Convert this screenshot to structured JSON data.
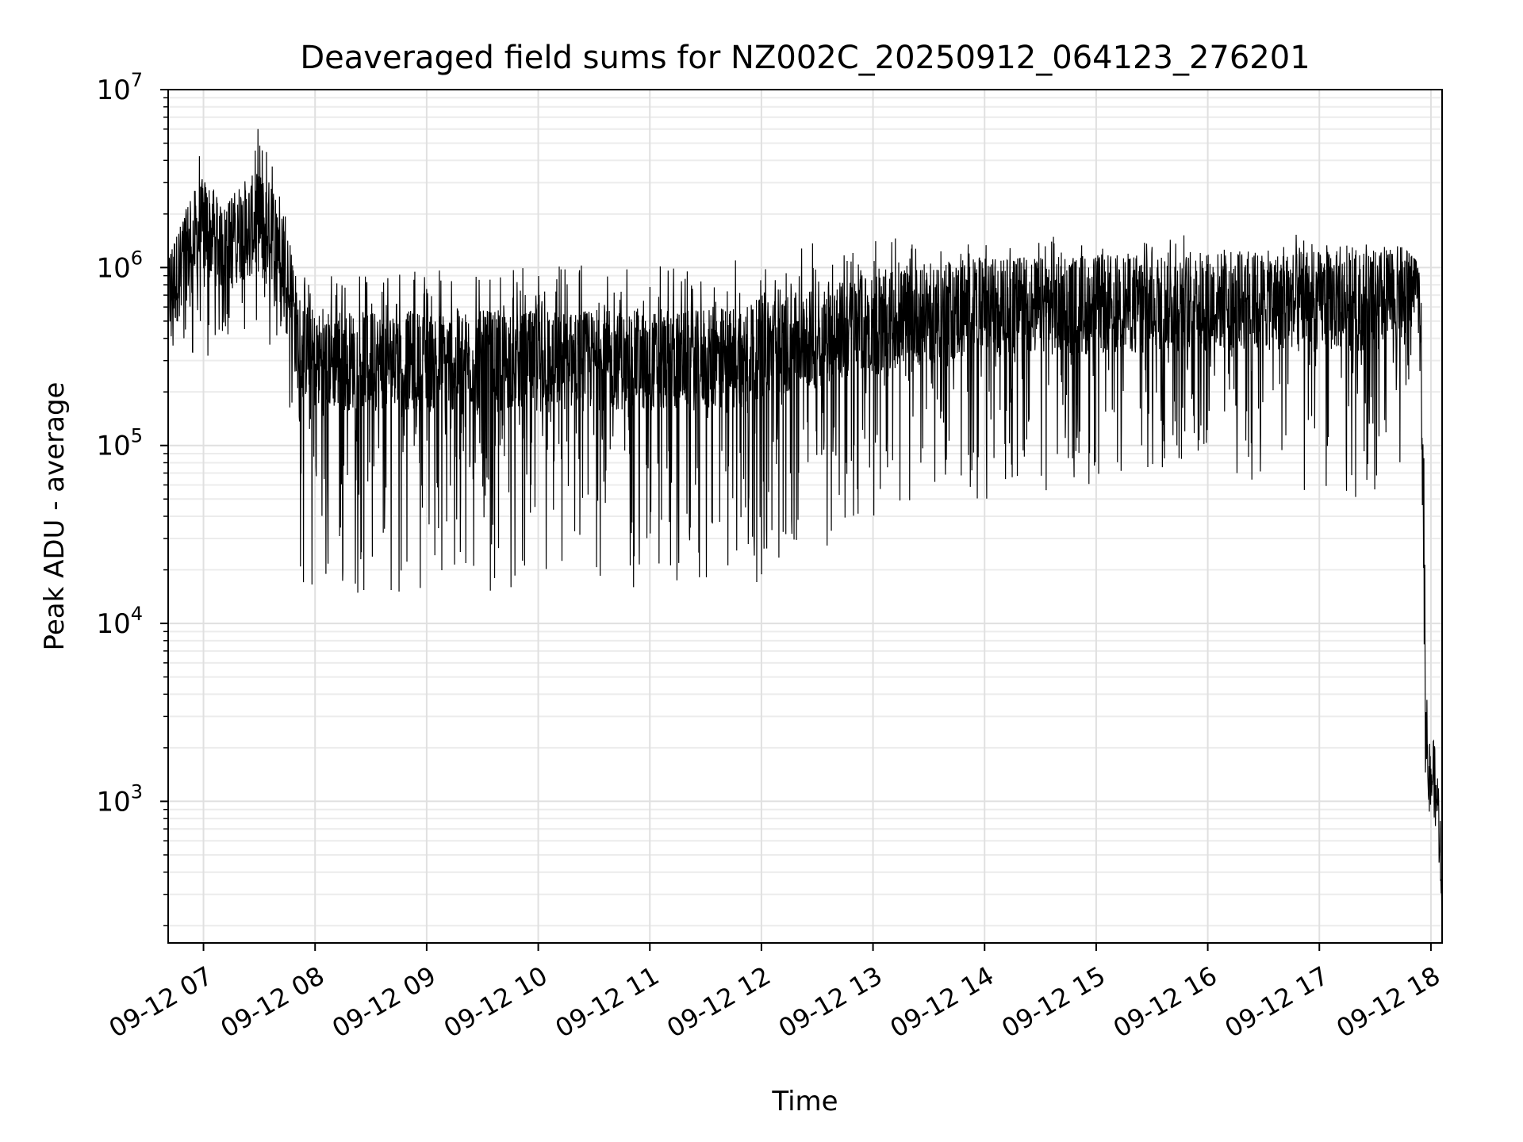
{
  "chart_data": {
    "type": "line",
    "title": "Deaveraged field sums for NZ002C_20250912_064123_276201",
    "xlabel": "Time",
    "ylabel": "Peak ADU - average",
    "yscale": "log",
    "ylim": [
      160,
      10000000
    ],
    "xlim": [
      "2025-09-12 06:41",
      "2025-09-12 18:06"
    ],
    "grid": "major and minor, light gray",
    "line_color": "#000000",
    "x_ticks": [
      {
        "t": "2025-09-12 07:00",
        "label": "09-12 07"
      },
      {
        "t": "2025-09-12 08:00",
        "label": "09-12 08"
      },
      {
        "t": "2025-09-12 09:00",
        "label": "09-12 09"
      },
      {
        "t": "2025-09-12 10:00",
        "label": "09-12 10"
      },
      {
        "t": "2025-09-12 11:00",
        "label": "09-12 11"
      },
      {
        "t": "2025-09-12 12:00",
        "label": "09-12 12"
      },
      {
        "t": "2025-09-12 13:00",
        "label": "09-12 13"
      },
      {
        "t": "2025-09-12 14:00",
        "label": "09-12 14"
      },
      {
        "t": "2025-09-12 15:00",
        "label": "09-12 15"
      },
      {
        "t": "2025-09-12 16:00",
        "label": "09-12 16"
      },
      {
        "t": "2025-09-12 17:00",
        "label": "09-12 17"
      },
      {
        "t": "2025-09-12 18:00",
        "label": "09-12 18"
      }
    ],
    "y_ticks": [
      {
        "value": 1000,
        "base": "10",
        "exp": "3"
      },
      {
        "value": 10000,
        "base": "10",
        "exp": "4"
      },
      {
        "value": 100000,
        "base": "10",
        "exp": "5"
      },
      {
        "value": 1000000,
        "base": "10",
        "exp": "6"
      },
      {
        "value": 10000000,
        "base": "10",
        "exp": "7"
      }
    ],
    "series": [
      {
        "x": [
          "2025-09-12 06:41",
          "2025-09-12 06:50",
          "2025-09-12 07:00",
          "2025-09-12 07:10",
          "2025-09-12 07:20",
          "2025-09-12 07:30",
          "2025-09-12 07:40",
          "2025-09-12 07:45",
          "2025-09-12 07:50",
          "2025-09-12 08:00",
          "2025-09-12 08:30",
          "2025-09-12 09:00",
          "2025-09-12 09:30",
          "2025-09-12 10:00",
          "2025-09-12 10:30",
          "2025-09-12 11:00",
          "2025-09-12 11:30",
          "2025-09-12 12:00",
          "2025-09-12 12:30",
          "2025-09-12 13:00",
          "2025-09-12 13:30",
          "2025-09-12 14:00",
          "2025-09-12 14:30",
          "2025-09-12 15:00",
          "2025-09-12 15:30",
          "2025-09-12 16:00",
          "2025-09-12 16:30",
          "2025-09-12 17:00",
          "2025-09-12 17:30",
          "2025-09-12 17:45",
          "2025-09-12 17:52",
          "2025-09-12 17:54",
          "2025-09-12 17:56",
          "2025-09-12 17:58",
          "2025-09-12 18:00",
          "2025-09-12 18:02",
          "2025-09-12 18:04",
          "2025-09-12 18:06"
        ],
        "y_high": [
          1100000,
          2000000,
          5500000,
          2000000,
          3000000,
          6500000,
          3700000,
          2500000,
          900000,
          900000,
          1000000,
          1000000,
          1000000,
          1000000,
          1100000,
          1100000,
          1100000,
          1200000,
          1400000,
          1500000,
          1500000,
          1500000,
          1500000,
          1500000,
          1600000,
          1500000,
          1600000,
          1500000,
          1400000,
          1300000,
          1100000,
          900000,
          350000,
          5300,
          3200,
          2000,
          1200,
          600
        ],
        "y_low": [
          250000,
          300000,
          250000,
          400000,
          400000,
          300000,
          300000,
          400000,
          15000,
          15000,
          14000,
          16000,
          15000,
          16000,
          16000,
          15000,
          16000,
          17000,
          25000,
          40000,
          50000,
          50000,
          55000,
          60000,
          60000,
          70000,
          60000,
          50000,
          50000,
          60000,
          800000,
          300000,
          3000,
          700,
          900,
          800,
          500,
          220
        ],
        "y_typ": [
          700000,
          1200000,
          1700000,
          1400000,
          1600000,
          1800000,
          1500000,
          1100000,
          400000,
          300000,
          300000,
          300000,
          300000,
          300000,
          300000,
          300000,
          300000,
          350000,
          400000,
          500000,
          550000,
          600000,
          600000,
          620000,
          640000,
          650000,
          650000,
          650000,
          650000,
          700000,
          900000,
          500000,
          40000,
          1500,
          1700,
          1300,
          900,
          350
        ]
      }
    ]
  }
}
